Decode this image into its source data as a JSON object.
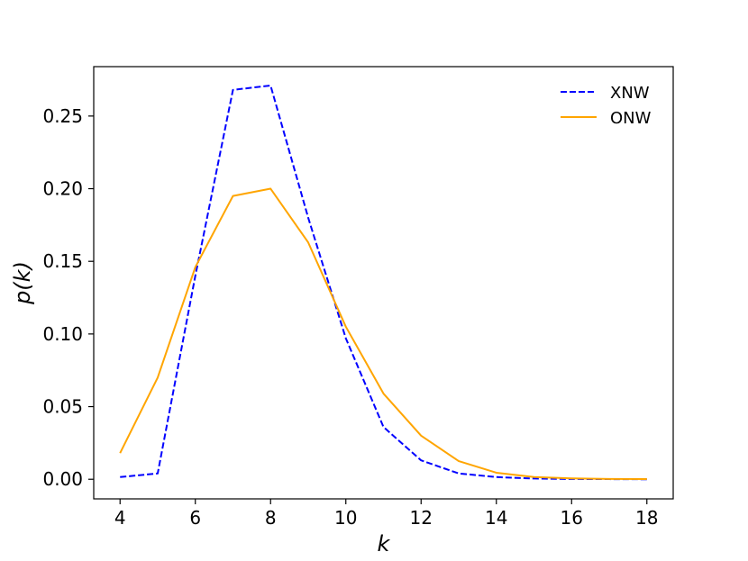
{
  "chart_data": {
    "type": "line",
    "title": "",
    "xlabel": "k",
    "ylabel": "p(k)",
    "xlim": [
      3.3,
      18.7
    ],
    "ylim": [
      -0.0135,
      0.284
    ],
    "xticks": [
      4,
      6,
      8,
      10,
      12,
      14,
      16,
      18
    ],
    "xtick_labels": [
      "4",
      "6",
      "8",
      "10",
      "12",
      "14",
      "16",
      "18"
    ],
    "yticks": [
      0.0,
      0.05,
      0.1,
      0.15,
      0.2,
      0.25
    ],
    "ytick_labels": [
      "0.00",
      "0.05",
      "0.10",
      "0.15",
      "0.20",
      "0.25"
    ],
    "grid": false,
    "legend_position": "top-right",
    "x": [
      4,
      5,
      6,
      7,
      8,
      9,
      10,
      11,
      12,
      13,
      14,
      15,
      16,
      17,
      18
    ],
    "series": [
      {
        "name": "XNW",
        "color": "#0000ff",
        "style": "dashed",
        "values": [
          0.0015,
          0.004,
          0.14,
          0.268,
          0.271,
          0.18,
          0.097,
          0.036,
          0.013,
          0.004,
          0.0015,
          0.0005,
          0.0002,
          0.0001,
          0.0
        ]
      },
      {
        "name": "ONW",
        "color": "#ffa500",
        "style": "solid",
        "values": [
          0.018,
          0.07,
          0.146,
          0.195,
          0.2,
          0.163,
          0.105,
          0.059,
          0.03,
          0.0125,
          0.0045,
          0.0015,
          0.0006,
          0.0002,
          0.0001
        ]
      }
    ]
  }
}
